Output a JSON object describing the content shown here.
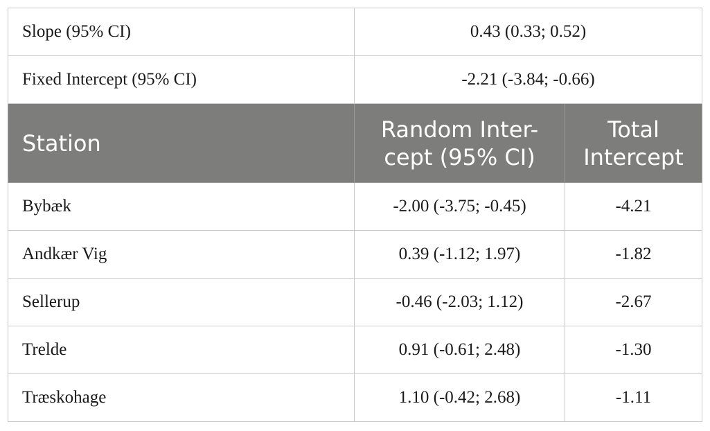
{
  "summary": [
    {
      "label": "Slope (95% CI)",
      "value": "0.43 (0.33; 0.52)"
    },
    {
      "label": "Fixed Intercept (95% CI)",
      "value": "-2.21 (-3.84; -0.66)"
    }
  ],
  "header": {
    "station": "Station",
    "random_line1": "Random Inter-",
    "random_line2": "cept (95% CI)",
    "total_line1": "Total",
    "total_line2": "Intercept"
  },
  "rows": [
    {
      "station": "Bybæk",
      "random": "-2.00 (-3.75; -0.45)",
      "total": "-4.21"
    },
    {
      "station": "Andkær Vig",
      "random": "0.39 (-1.12; 1.97)",
      "total": "-1.82"
    },
    {
      "station": "Sellerup",
      "random": "-0.46 (-2.03; 1.12)",
      "total": "-2.67"
    },
    {
      "station": "Trelde",
      "random": "0.91 (-0.61; 2.48)",
      "total": "-1.30"
    },
    {
      "station": "Træskohage",
      "random": "1.10 (-0.42; 2.68)",
      "total": "-1.11"
    }
  ]
}
